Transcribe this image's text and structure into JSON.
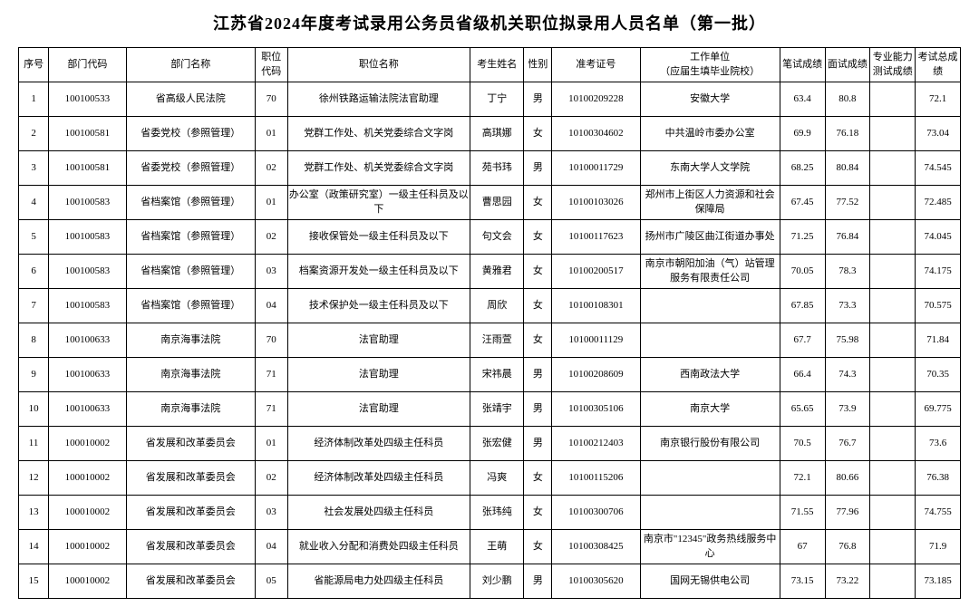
{
  "title": "江苏省2024年度考试录用公务员省级机关职位拟录用人员名单（第一批）",
  "columns": [
    "序号",
    "部门代码",
    "部门名称",
    "职位代码",
    "职位名称",
    "考生姓名",
    "性别",
    "准考证号",
    "工作单位\n（应届生填毕业院校）",
    "笔试成绩",
    "面试成绩",
    "专业能力测试成绩",
    "考试总成绩"
  ],
  "rows": [
    [
      "1",
      "100100533",
      "省高级人民法院",
      "70",
      "徐州铁路运输法院法官助理",
      "丁宁",
      "男",
      "10100209228",
      "安徽大学",
      "63.4",
      "80.8",
      "",
      "72.1"
    ],
    [
      "2",
      "100100581",
      "省委党校（参照管理）",
      "01",
      "党群工作处、机关党委综合文字岗",
      "高琪娜",
      "女",
      "10100304602",
      "中共温岭市委办公室",
      "69.9",
      "76.18",
      "",
      "73.04"
    ],
    [
      "3",
      "100100581",
      "省委党校（参照管理）",
      "02",
      "党群工作处、机关党委综合文字岗",
      "苑书玮",
      "男",
      "10100011729",
      "东南大学人文学院",
      "68.25",
      "80.84",
      "",
      "74.545"
    ],
    [
      "4",
      "100100583",
      "省档案馆（参照管理）",
      "01",
      "办公室（政策研究室）一级主任科员及以下",
      "曹思园",
      "女",
      "10100103026",
      "郑州市上街区人力资源和社会保障局",
      "67.45",
      "77.52",
      "",
      "72.485"
    ],
    [
      "5",
      "100100583",
      "省档案馆（参照管理）",
      "02",
      "接收保管处一级主任科员及以下",
      "句文会",
      "女",
      "10100117623",
      "扬州市广陵区曲江街道办事处",
      "71.25",
      "76.84",
      "",
      "74.045"
    ],
    [
      "6",
      "100100583",
      "省档案馆（参照管理）",
      "03",
      "档案资源开发处一级主任科员及以下",
      "黄雅君",
      "女",
      "10100200517",
      "南京市朝阳加油（气）站管理服务有限责任公司",
      "70.05",
      "78.3",
      "",
      "74.175"
    ],
    [
      "7",
      "100100583",
      "省档案馆（参照管理）",
      "04",
      "技术保护处一级主任科员及以下",
      "周欣",
      "女",
      "10100108301",
      "",
      "67.85",
      "73.3",
      "",
      "70.575"
    ],
    [
      "8",
      "100100633",
      "南京海事法院",
      "70",
      "法官助理",
      "汪雨萱",
      "女",
      "10100011129",
      "",
      "67.7",
      "75.98",
      "",
      "71.84"
    ],
    [
      "9",
      "100100633",
      "南京海事法院",
      "71",
      "法官助理",
      "宋祎晨",
      "男",
      "10100208609",
      "西南政法大学",
      "66.4",
      "74.3",
      "",
      "70.35"
    ],
    [
      "10",
      "100100633",
      "南京海事法院",
      "71",
      "法官助理",
      "张靖宇",
      "男",
      "10100305106",
      "南京大学",
      "65.65",
      "73.9",
      "",
      "69.775"
    ],
    [
      "11",
      "100010002",
      "省发展和改革委员会",
      "01",
      "经济体制改革处四级主任科员",
      "张宏健",
      "男",
      "10100212403",
      "南京银行股份有限公司",
      "70.5",
      "76.7",
      "",
      "73.6"
    ],
    [
      "12",
      "100010002",
      "省发展和改革委员会",
      "02",
      "经济体制改革处四级主任科员",
      "冯爽",
      "女",
      "10100115206",
      "",
      "72.1",
      "80.66",
      "",
      "76.38"
    ],
    [
      "13",
      "100010002",
      "省发展和改革委员会",
      "03",
      "社会发展处四级主任科员",
      "张玮纯",
      "女",
      "10100300706",
      "",
      "71.55",
      "77.96",
      "",
      "74.755"
    ],
    [
      "14",
      "100010002",
      "省发展和改革委员会",
      "04",
      "就业收入分配和消费处四级主任科员",
      "王萌",
      "女",
      "10100308425",
      "南京市\"12345\"政务热线服务中心",
      "67",
      "76.8",
      "",
      "71.9"
    ],
    [
      "15",
      "100010002",
      "省发展和改革委员会",
      "05",
      "省能源局电力处四级主任科员",
      "刘少鹏",
      "男",
      "10100305620",
      "国网无锡供电公司",
      "73.15",
      "73.22",
      "",
      "73.185"
    ]
  ],
  "colClasses": [
    "col-seq",
    "col-dcode",
    "col-dname",
    "col-pcode",
    "col-pname",
    "col-cname",
    "col-sex",
    "col-exam",
    "col-work",
    "col-s1",
    "col-s2",
    "col-s3",
    "col-s4"
  ],
  "cellNames": [
    "seq",
    "dept-code",
    "dept-name",
    "pos-code",
    "pos-name",
    "candidate-name",
    "gender",
    "exam-id",
    "work-unit",
    "written-score",
    "interview-score",
    "pro-score",
    "total-score"
  ]
}
